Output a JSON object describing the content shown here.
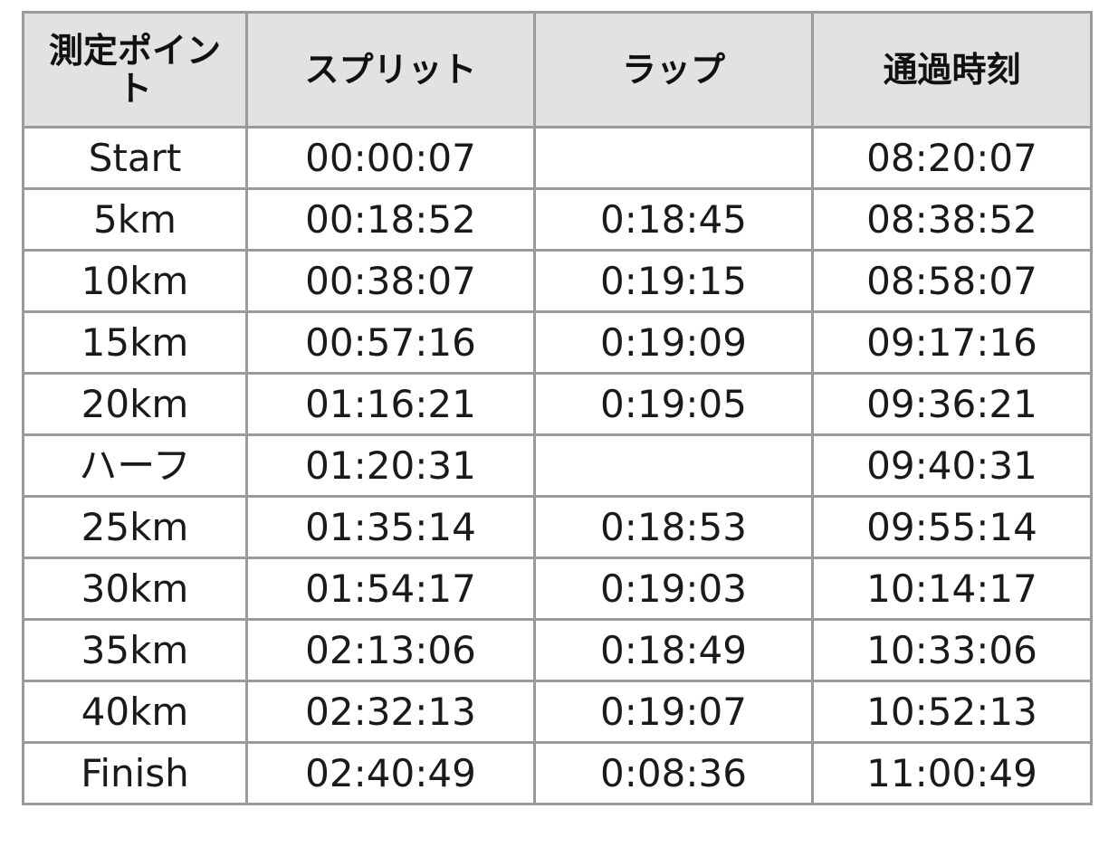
{
  "table": {
    "headers": [
      "測定ポイント",
      "スプリット",
      "ラップ",
      "通過時刻"
    ],
    "rows": [
      {
        "point": "Start",
        "split": "00:00:07",
        "lap": "",
        "passing": "08:20:07"
      },
      {
        "point": "5km",
        "split": "00:18:52",
        "lap": "0:18:45",
        "passing": "08:38:52"
      },
      {
        "point": "10km",
        "split": "00:38:07",
        "lap": "0:19:15",
        "passing": "08:58:07"
      },
      {
        "point": "15km",
        "split": "00:57:16",
        "lap": "0:19:09",
        "passing": "09:17:16"
      },
      {
        "point": "20km",
        "split": "01:16:21",
        "lap": "0:19:05",
        "passing": "09:36:21"
      },
      {
        "point": "ハーフ",
        "split": "01:20:31",
        "lap": "",
        "passing": "09:40:31"
      },
      {
        "point": "25km",
        "split": "01:35:14",
        "lap": "0:18:53",
        "passing": "09:55:14"
      },
      {
        "point": "30km",
        "split": "01:54:17",
        "lap": "0:19:03",
        "passing": "10:14:17"
      },
      {
        "point": "35km",
        "split": "02:13:06",
        "lap": "0:18:49",
        "passing": "10:33:06"
      },
      {
        "point": "40km",
        "split": "02:32:13",
        "lap": "0:19:07",
        "passing": "10:52:13"
      },
      {
        "point": "Finish",
        "split": "02:40:49",
        "lap": "0:08:36",
        "passing": "11:00:49"
      }
    ]
  },
  "colors": {
    "header_bg": "#e2e2e2",
    "border": "#9a9a9a",
    "text": "#1a1a1a"
  }
}
